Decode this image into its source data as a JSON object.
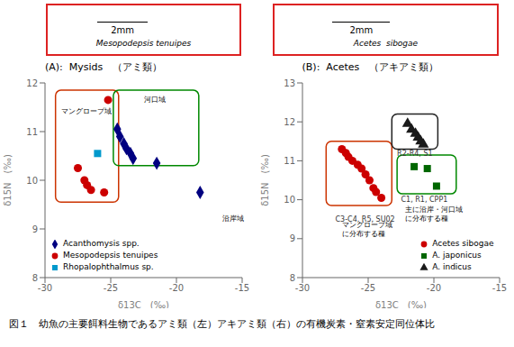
{
  "chart_data": [
    {
      "type": "scatter",
      "title": "(A):  Mysids　（アミ類）",
      "x_label": "δ13C　(‰)",
      "y_label": "δ15N　(‰)",
      "xlim": [
        -30,
        -15
      ],
      "ylim": [
        8,
        12
      ],
      "xticks": [
        -30,
        -25,
        -20,
        -15
      ],
      "yticks": [
        8,
        9,
        10,
        11,
        12
      ],
      "grid": false,
      "legend": "lower left",
      "series": [
        {
          "name": "Acanthomysis spp.",
          "color": "#000080",
          "marker": "diamond",
          "x": [
            -24.5,
            -24.3,
            -24.0,
            -23.8,
            -23.5,
            -23.3,
            -21.5,
            -18.2
          ],
          "values": [
            11.05,
            10.9,
            10.75,
            10.65,
            10.55,
            10.45,
            10.35,
            9.75
          ]
        },
        {
          "name": "Mesopodepsis tenuipes",
          "color": "#cc0000",
          "marker": "circle",
          "x": [
            -27.5,
            -27.0,
            -26.8,
            -26.5,
            -25.5,
            -25.2
          ],
          "values": [
            10.25,
            10.0,
            9.9,
            9.8,
            9.75,
            11.65
          ]
        },
        {
          "name": "Rhopalophthalmus sp.",
          "color": "#0099cc",
          "marker": "square",
          "x": [
            -26.0
          ],
          "values": [
            10.55
          ]
        }
      ],
      "regions": [
        {
          "x": [
            -29.2,
            -24.4
          ],
          "y": [
            9.55,
            11.85
          ],
          "color": "#cc3300"
        },
        {
          "x": [
            -24.8,
            -18.3
          ],
          "y": [
            10.3,
            11.85
          ],
          "color": "#008800"
        }
      ],
      "annotations": [
        {
          "text": "マングローブ域",
          "x": -28.8,
          "y": 11.5
        },
        {
          "text": "河口域",
          "x": -22.5,
          "y": 11.75
        },
        {
          "text": "沿岸域",
          "x": -16.5,
          "y": 9.3
        }
      ],
      "image_label": "2mm",
      "image_species": "Mesopodepsis tenuipes"
    },
    {
      "type": "scatter",
      "title": "(B):  Acetes　（アキアミ類）",
      "x_label": "δ13C　(‰)",
      "y_label": "δ15N　(‰)",
      "xlim": [
        -30,
        -15
      ],
      "ylim": [
        8,
        13
      ],
      "xticks": [
        -30,
        -25,
        -20,
        -15
      ],
      "yticks": [
        8,
        9,
        10,
        11,
        12,
        13
      ],
      "grid": false,
      "legend": "lower right",
      "series": [
        {
          "name": "Acetes sibogae",
          "color": "#cc0000",
          "marker": "circle",
          "x": [
            -27.0,
            -26.7,
            -26.5,
            -26.2,
            -25.8,
            -25.5,
            -25.2,
            -24.9,
            -24.6,
            -24.4,
            -24.0
          ],
          "values": [
            11.3,
            11.2,
            11.1,
            11.0,
            10.9,
            10.8,
            10.65,
            10.5,
            10.3,
            10.2,
            10.05
          ]
        },
        {
          "name": "A. japonicus",
          "color": "#006600",
          "marker": "square",
          "x": [
            -21.5,
            -20.5,
            -19.8
          ],
          "values": [
            10.85,
            10.8,
            10.35
          ]
        },
        {
          "name": "A. indicus",
          "color": "#1a1a1a",
          "marker": "triangle",
          "x": [
            -22.0,
            -21.7,
            -21.4,
            -21.2,
            -21.0,
            -20.8
          ],
          "values": [
            11.95,
            11.8,
            11.7,
            11.6,
            11.5,
            11.42
          ]
        }
      ],
      "regions": [
        {
          "x": [
            -28.2,
            -23.2
          ],
          "y": [
            9.85,
            11.5
          ],
          "color": "#cc3300"
        },
        {
          "x": [
            -22.8,
            -18.3
          ],
          "y": [
            10.15,
            11.15
          ],
          "color": "#008800"
        },
        {
          "x": [
            -23.2,
            -19.7
          ],
          "y": [
            11.3,
            12.2
          ],
          "color": "#222222"
        }
      ],
      "annotations": [
        {
          "text": "C3-C4, R5, SU02",
          "x": -27.5,
          "y": 9.6,
          "color": "#333333"
        },
        {
          "text": "マングローブ域\nに分布する種",
          "x": -27.0,
          "y": 9.45,
          "color": "black"
        },
        {
          "text": "C1, R1, CPP1",
          "x": -22.5,
          "y": 10.1,
          "color": "#333333"
        },
        {
          "text": "主に沿岸・河口域\nに分布する種",
          "x": -22.2,
          "y": 9.85,
          "color": "black"
        },
        {
          "text": "R2-R4, S1",
          "x": -22.8,
          "y": 11.28,
          "color": "#333333"
        }
      ],
      "image_label": "2mm",
      "image_species": "Acetes  sibogae"
    }
  ],
  "caption": "図１　幼魚の主要餌料生物であるアミ類（左）アキアミ類（右）の有機炭素・窒素安定同位体比"
}
